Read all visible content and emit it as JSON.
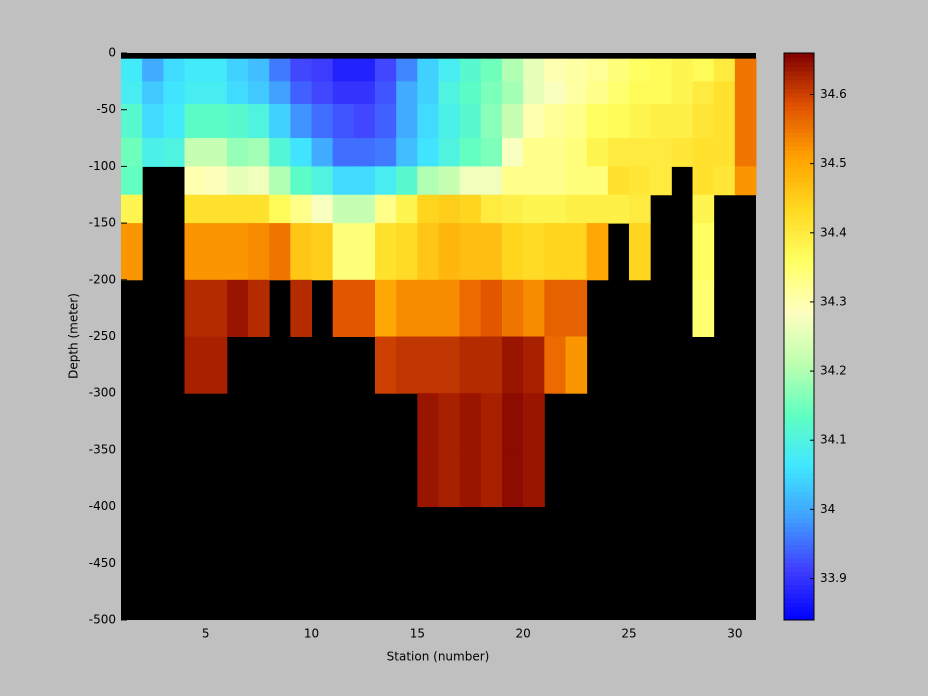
{
  "chart_data": {
    "type": "heatmap",
    "x_label": "Station (number)",
    "y_label": "Depth (meter)",
    "xlim": [
      1,
      31
    ],
    "ylim": [
      -500,
      0
    ],
    "xticks": [
      5,
      10,
      15,
      20,
      25,
      30
    ],
    "yticks": [
      0,
      -50,
      -100,
      -150,
      -200,
      -250,
      -300,
      -350,
      -400,
      -450,
      -500
    ],
    "x_edges": [
      1,
      2,
      3,
      4,
      5,
      6,
      7,
      8,
      9,
      10,
      11,
      12,
      13,
      14,
      15,
      16,
      17,
      18,
      19,
      20,
      21,
      22,
      23,
      24,
      25,
      26,
      27,
      28,
      29,
      30,
      31
    ],
    "y_edges": [
      -5,
      -25,
      -45,
      -75,
      -100,
      -125,
      -150,
      -200,
      -250,
      -300,
      -350,
      -400,
      -450,
      -500
    ],
    "nan_color": "#000000",
    "clim": [
      33.84,
      34.66
    ],
    "cticks": [
      33.9,
      34,
      34.1,
      34.2,
      34.3,
      34.4,
      34.5,
      34.6
    ],
    "colormap": [
      "#0000ff",
      "#4040ff",
      "#40a0ff",
      "#40e8ff",
      "#60ffc0",
      "#c0ffb0",
      "#ffffc0",
      "#ffff60",
      "#ffd820",
      "#ffa000",
      "#e05000",
      "#800000"
    ],
    "z": [
      [
        34.07,
        34.0,
        34.05,
        34.07,
        34.07,
        34.04,
        34.02,
        33.96,
        33.92,
        33.91,
        33.88,
        33.88,
        33.92,
        33.97,
        34.04,
        34.08,
        34.12,
        34.15,
        34.2,
        34.26,
        34.3,
        34.31,
        34.32,
        34.34,
        34.36,
        34.37,
        34.38,
        34.37,
        34.4,
        34.55
      ],
      [
        34.08,
        34.03,
        34.06,
        34.08,
        34.08,
        34.05,
        34.03,
        33.99,
        33.94,
        33.92,
        33.9,
        33.9,
        33.93,
        34.0,
        34.04,
        34.1,
        34.13,
        34.16,
        34.19,
        34.26,
        34.28,
        34.31,
        34.33,
        34.35,
        34.37,
        34.37,
        34.38,
        34.4,
        34.42,
        34.55
      ],
      [
        34.12,
        34.05,
        34.07,
        34.13,
        34.13,
        34.12,
        34.1,
        34.04,
        33.98,
        33.95,
        33.93,
        33.92,
        33.94,
        34.0,
        34.05,
        34.09,
        34.12,
        34.17,
        34.22,
        34.3,
        34.32,
        34.33,
        34.36,
        34.37,
        34.38,
        34.39,
        34.39,
        34.41,
        34.42,
        34.55
      ],
      [
        34.15,
        34.09,
        34.1,
        34.22,
        34.22,
        34.18,
        34.19,
        34.11,
        34.06,
        34.0,
        33.95,
        33.95,
        33.96,
        34.02,
        34.06,
        34.1,
        34.14,
        34.16,
        34.28,
        34.33,
        34.33,
        34.34,
        34.38,
        34.4,
        34.4,
        34.4,
        34.41,
        34.42,
        34.42,
        34.55
      ],
      [
        34.14,
        null,
        null,
        34.3,
        34.29,
        34.26,
        34.27,
        34.2,
        34.13,
        34.1,
        34.05,
        34.05,
        34.08,
        34.12,
        34.2,
        34.22,
        34.27,
        34.27,
        34.33,
        34.33,
        34.33,
        34.34,
        34.34,
        34.42,
        34.41,
        34.4,
        null,
        34.42,
        34.41,
        34.52
      ],
      [
        34.38,
        null,
        null,
        34.42,
        34.42,
        34.42,
        34.42,
        34.37,
        34.33,
        34.28,
        34.22,
        34.22,
        34.33,
        34.38,
        34.44,
        34.45,
        34.44,
        34.4,
        34.39,
        34.38,
        34.38,
        34.39,
        34.39,
        34.39,
        34.4,
        null,
        null,
        34.38,
        null,
        null
      ],
      [
        34.52,
        null,
        null,
        34.52,
        34.52,
        34.52,
        34.53,
        34.55,
        34.46,
        34.45,
        34.34,
        34.34,
        34.42,
        34.43,
        34.46,
        34.48,
        34.47,
        34.47,
        34.44,
        34.43,
        34.44,
        34.44,
        34.5,
        null,
        34.44,
        null,
        null,
        34.36,
        null,
        null
      ],
      [
        null,
        null,
        null,
        34.62,
        34.62,
        34.64,
        34.62,
        null,
        34.62,
        null,
        34.58,
        34.58,
        34.5,
        34.53,
        34.53,
        34.53,
        34.56,
        34.58,
        34.55,
        34.53,
        34.57,
        34.57,
        null,
        null,
        null,
        null,
        null,
        34.35,
        null,
        null
      ],
      [
        null,
        null,
        null,
        34.63,
        34.63,
        null,
        null,
        null,
        null,
        null,
        null,
        null,
        34.6,
        34.61,
        34.61,
        34.61,
        34.62,
        34.62,
        34.64,
        34.63,
        34.56,
        34.52,
        null,
        null,
        null,
        null,
        null,
        null,
        null,
        null
      ],
      [
        null,
        null,
        null,
        null,
        null,
        null,
        null,
        null,
        null,
        null,
        null,
        null,
        null,
        null,
        34.64,
        34.63,
        34.64,
        34.63,
        34.65,
        34.64,
        null,
        null,
        null,
        null,
        null,
        null,
        null,
        null,
        null,
        null
      ],
      [
        null,
        null,
        null,
        null,
        null,
        null,
        null,
        null,
        null,
        null,
        null,
        null,
        null,
        null,
        34.64,
        34.63,
        34.64,
        34.63,
        34.65,
        34.64,
        null,
        null,
        null,
        null,
        null,
        null,
        null,
        null,
        null,
        null
      ],
      [
        null,
        null,
        null,
        null,
        null,
        null,
        null,
        null,
        null,
        null,
        null,
        null,
        null,
        null,
        null,
        null,
        null,
        null,
        null,
        null,
        null,
        null,
        null,
        null,
        null,
        null,
        null,
        null,
        null,
        null
      ],
      [
        null,
        null,
        null,
        null,
        null,
        null,
        null,
        null,
        null,
        null,
        null,
        null,
        null,
        null,
        null,
        null,
        null,
        null,
        null,
        null,
        null,
        null,
        null,
        null,
        null,
        null,
        null,
        null,
        null,
        null
      ]
    ]
  }
}
